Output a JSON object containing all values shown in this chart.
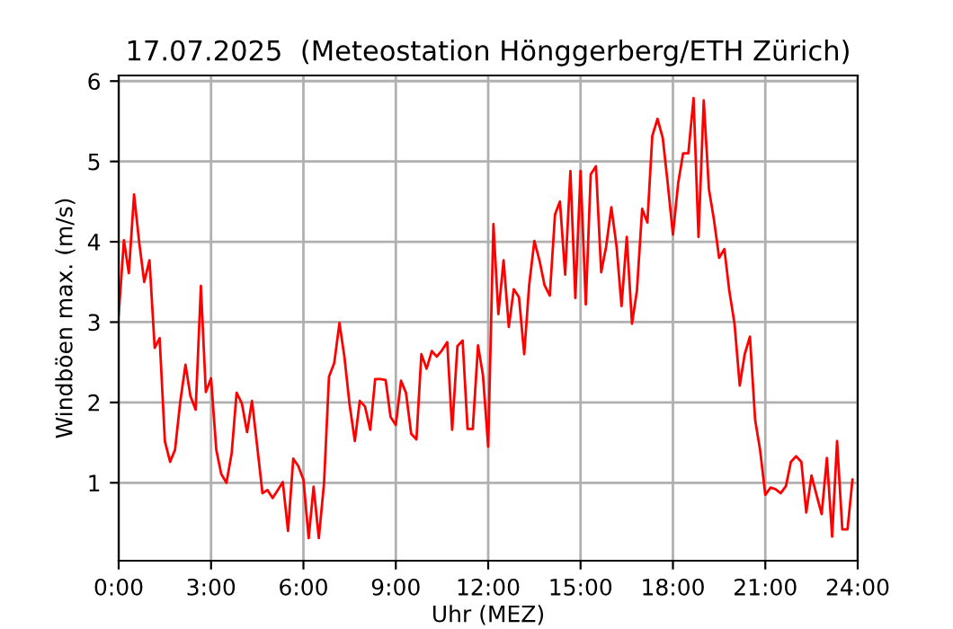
{
  "chart_data": {
    "type": "line",
    "title": "17.07.2025  (Meteostation Hönggerberg/ETH Zürich)",
    "xlabel": "Uhr (MEZ)",
    "ylabel": "Windböen max. (m/s)",
    "x": [
      0,
      0.17,
      0.33,
      0.5,
      0.67,
      0.83,
      1,
      1.17,
      1.33,
      1.5,
      1.67,
      1.83,
      2,
      2.17,
      2.33,
      2.5,
      2.67,
      2.83,
      3,
      3.17,
      3.33,
      3.5,
      3.67,
      3.83,
      4,
      4.17,
      4.33,
      4.5,
      4.67,
      4.83,
      5,
      5.17,
      5.33,
      5.5,
      5.67,
      5.83,
      6,
      6.17,
      6.33,
      6.5,
      6.67,
      6.83,
      7,
      7.17,
      7.33,
      7.5,
      7.67,
      7.83,
      8,
      8.17,
      8.33,
      8.5,
      8.67,
      8.83,
      9,
      9.17,
      9.33,
      9.5,
      9.67,
      9.83,
      10,
      10.17,
      10.33,
      10.5,
      10.67,
      10.83,
      11,
      11.17,
      11.33,
      11.5,
      11.67,
      11.83,
      12,
      12.17,
      12.33,
      12.5,
      12.67,
      12.83,
      13,
      13.17,
      13.33,
      13.5,
      13.67,
      13.83,
      14,
      14.17,
      14.33,
      14.5,
      14.67,
      14.83,
      15,
      15.17,
      15.33,
      15.5,
      15.67,
      15.83,
      16,
      16.17,
      16.33,
      16.5,
      16.67,
      16.83,
      17,
      17.17,
      17.33,
      17.5,
      17.67,
      17.83,
      18,
      18.17,
      18.33,
      18.5,
      18.67,
      18.83,
      19,
      19.17,
      19.33,
      19.5,
      19.67,
      19.83,
      20,
      20.17,
      20.33,
      20.5,
      20.67,
      20.83,
      21,
      21.17,
      21.33,
      21.5,
      21.67,
      21.83,
      22,
      22.17,
      22.33,
      22.5,
      22.67,
      22.83,
      23,
      23.17,
      23.33,
      23.5,
      23.67,
      23.83
    ],
    "series": [
      {
        "color": "#ff0000",
        "values": [
          3.09,
          4.02,
          3.61,
          4.59,
          3.98,
          3.5,
          3.77,
          2.68,
          2.8,
          1.52,
          1.26,
          1.41,
          2.01,
          2.47,
          2.08,
          1.91,
          3.45,
          2.13,
          2.3,
          1.41,
          1.11,
          1.0,
          1.37,
          2.12,
          1.99,
          1.63,
          2.02,
          1.45,
          0.87,
          0.91,
          0.81,
          0.91,
          1.01,
          0.4,
          1.3,
          1.21,
          1.04,
          0.31,
          0.95,
          0.31,
          1.0,
          2.32,
          2.49,
          2.99,
          2.57,
          1.97,
          1.52,
          2.02,
          1.95,
          1.66,
          2.29,
          2.29,
          2.28,
          1.82,
          1.72,
          2.27,
          2.12,
          1.61,
          1.54,
          2.6,
          2.42,
          2.64,
          2.57,
          2.65,
          2.75,
          1.66,
          2.7,
          2.77,
          1.67,
          1.67,
          2.71,
          2.34,
          1.45,
          4.22,
          3.1,
          3.77,
          2.94,
          3.41,
          3.31,
          2.6,
          3.46,
          4.01,
          3.76,
          3.46,
          3.33,
          4.34,
          4.5,
          3.59,
          4.88,
          3.3,
          4.88,
          3.22,
          4.84,
          4.94,
          3.62,
          3.94,
          4.43,
          3.94,
          3.2,
          4.06,
          2.98,
          3.39,
          4.41,
          4.24,
          5.32,
          5.53,
          5.29,
          4.73,
          4.09,
          4.73,
          5.1,
          5.1,
          5.79,
          4.06,
          5.76,
          4.65,
          4.28,
          3.8,
          3.91,
          3.39,
          2.98,
          2.21,
          2.6,
          2.82,
          1.78,
          1.41,
          0.85,
          0.94,
          0.92,
          0.87,
          0.96,
          1.26,
          1.33,
          1.26,
          0.63,
          1.09,
          0.84,
          0.61,
          1.31,
          0.33,
          1.52,
          0.42,
          0.42,
          1.04
        ]
      }
    ],
    "xlim": [
      0,
      24
    ],
    "xticks": [
      {
        "value": 0,
        "label": "0:00"
      },
      {
        "value": 3,
        "label": "3:00"
      },
      {
        "value": 6,
        "label": "6:00"
      },
      {
        "value": 9,
        "label": "9:00"
      },
      {
        "value": 12,
        "label": "12:00"
      },
      {
        "value": 15,
        "label": "15:00"
      },
      {
        "value": 18,
        "label": "18:00"
      },
      {
        "value": 21,
        "label": "21:00"
      },
      {
        "value": 24,
        "label": "24:00"
      }
    ],
    "ylim": [
      0.03,
      6.07
    ],
    "yticks": [
      1,
      2,
      3,
      4,
      5,
      6
    ],
    "grid": true
  }
}
